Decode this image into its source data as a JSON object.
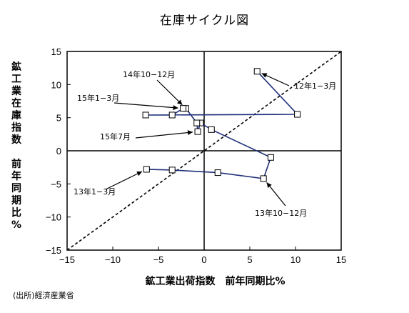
{
  "chart_data": {
    "type": "scatter",
    "title": "在庫サイクル図",
    "xlabel": "鉱工業出荷指数　前年同期比%",
    "ylabel_lines": [
      "鉱",
      "工",
      "業",
      "在",
      "庫",
      "指",
      "数",
      "",
      "前",
      "年",
      "同",
      "期",
      "比",
      "%"
    ],
    "xlim": [
      -15,
      15
    ],
    "ylim": [
      -15,
      15
    ],
    "x_ticks": [
      -15,
      -10,
      -5,
      0,
      5,
      10,
      15
    ],
    "y_ticks": [
      -15,
      -10,
      -5,
      0,
      5,
      10,
      15
    ],
    "x_tick_labels": [
      "−15",
      "−10",
      "−5",
      "0",
      "5",
      "10",
      "15"
    ],
    "y_tick_labels": [
      "−15",
      "−10",
      "−5",
      "0",
      "5",
      "10",
      "15"
    ],
    "grid": false,
    "diagonal_reference": {
      "style": "dashed",
      "from": [
        -15,
        -15
      ],
      "to": [
        15,
        15
      ]
    },
    "series": [
      {
        "points": [
          [
            -6.3,
            -2.8
          ],
          [
            -3.5,
            -2.9
          ],
          [
            1.5,
            -3.3
          ],
          [
            6.5,
            -4.2
          ],
          [
            7.3,
            -1.0
          ],
          [
            0.8,
            3.2
          ],
          [
            -0.4,
            4.2
          ],
          [
            -0.7,
            2.9
          ],
          [
            -0.8,
            4.2
          ],
          [
            -2.0,
            6.4
          ],
          [
            -2.3,
            6.4
          ],
          [
            -3.5,
            5.4
          ],
          [
            -6.4,
            5.4
          ],
          [
            10.2,
            5.5
          ],
          [
            5.8,
            12.0
          ]
        ],
        "line_color": "#1f2f7a",
        "marker": "square-open"
      }
    ],
    "annotations": [
      {
        "text": "14年10−12月",
        "point": [
          -2.0,
          6.4
        ]
      },
      {
        "text": "15年1−3月",
        "point": [
          -2.3,
          6.4
        ]
      },
      {
        "text": "15年7月",
        "point": [
          -0.7,
          2.9
        ]
      },
      {
        "text": "13年1−3月",
        "point": [
          -6.3,
          -2.8
        ]
      },
      {
        "text": "13年10−12月",
        "point": [
          6.5,
          -4.2
        ]
      },
      {
        "text": "12年1−3月",
        "point": [
          5.8,
          12.0
        ]
      }
    ]
  },
  "source": "(出所)経済産業省"
}
